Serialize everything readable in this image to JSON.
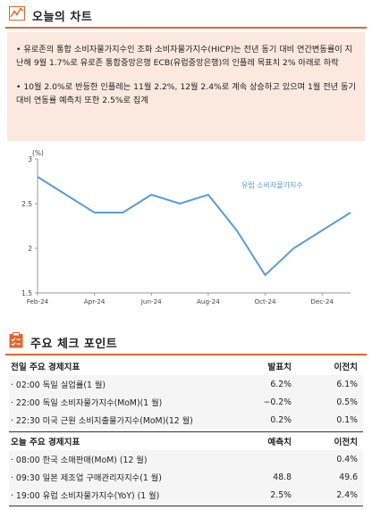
{
  "chart_section": {
    "title": "오늘의 차트",
    "icon": "line-chart-icon",
    "accent": "#e0672a"
  },
  "summary": [
    "• 유로존의 통합 소비자물가지수인 조화 소비자물가지수(HICP)는 전년 동기 대비 연간변동률이 지난해 9월 1.7%로 유로존 통합중앙은행 ECB(유럽중앙은행)의 인플레 목표치 2% 아래로 하락",
    "• 10월 2.0%로 반등한 인플레는 11월 2.2%, 12월 2.4%로 계속 상승하고 있으며 1월 전년 동기 대비 연동률 예측치 또한 2.5%로 집계"
  ],
  "chart_data": {
    "type": "line",
    "ylabel": "(%)",
    "x": [
      "Feb-24",
      "Mar-24",
      "Apr-24",
      "May-24",
      "Jun-24",
      "Jul-24",
      "Aug-24",
      "Sep-24",
      "Oct-24",
      "Nov-24",
      "Dec-24",
      "Jan-25"
    ],
    "x_tick_labels": [
      "Feb-24",
      "Apr-24",
      "Jun-24",
      "Aug-24",
      "Oct-24",
      "Dec-24"
    ],
    "series": [
      {
        "name": "유럽 소비자물가지수",
        "values": [
          2.8,
          2.6,
          2.4,
          2.4,
          2.6,
          2.5,
          2.6,
          2.2,
          1.7,
          2.0,
          2.2,
          2.4
        ],
        "color": "#5b9bd5"
      }
    ],
    "y_ticks": [
      "3",
      "2.5",
      "2",
      "1.5"
    ],
    "ylim": [
      1.5,
      3
    ],
    "grid": false,
    "legend": "inline-top-right"
  },
  "points_section": {
    "title": "주요 체크 포인트",
    "icon": "checklist-icon",
    "accent": "#e0672a"
  },
  "prev_day": {
    "header": {
      "label": "전일 주요 경제지표",
      "col1": "발표치",
      "col2": "이전치"
    },
    "rows": [
      {
        "label": "· 02:00 독일 실업률(1 월)",
        "v1": "6.2%",
        "v2": "6.1%"
      },
      {
        "label": "· 22:00 독일 소비자물가지수(MoM)(1 월)",
        "v1": "−0.2%",
        "v2": "0.5%"
      },
      {
        "label": "· 22:30 미국 근원 소비지출물가지수(MoM)(12 월)",
        "v1": "0.2%",
        "v2": "0.1%"
      }
    ]
  },
  "today": {
    "header": {
      "label": "오늘 주요 경제지표",
      "col1": "예측치",
      "col2": "이전치"
    },
    "rows": [
      {
        "label": "· 08:00 한국 소매판매(MoM) (12 월)",
        "v1": "",
        "v2": "0.4%"
      },
      {
        "label": "· 09:30 일본 제조업 구매관리자지수(1 월)",
        "v1": "48.8",
        "v2": "49.6"
      },
      {
        "label": "· 19:00 유럽 소비자물가지수(YoY) (1 월)",
        "v1": "2.5%",
        "v2": "2.4%"
      }
    ]
  }
}
